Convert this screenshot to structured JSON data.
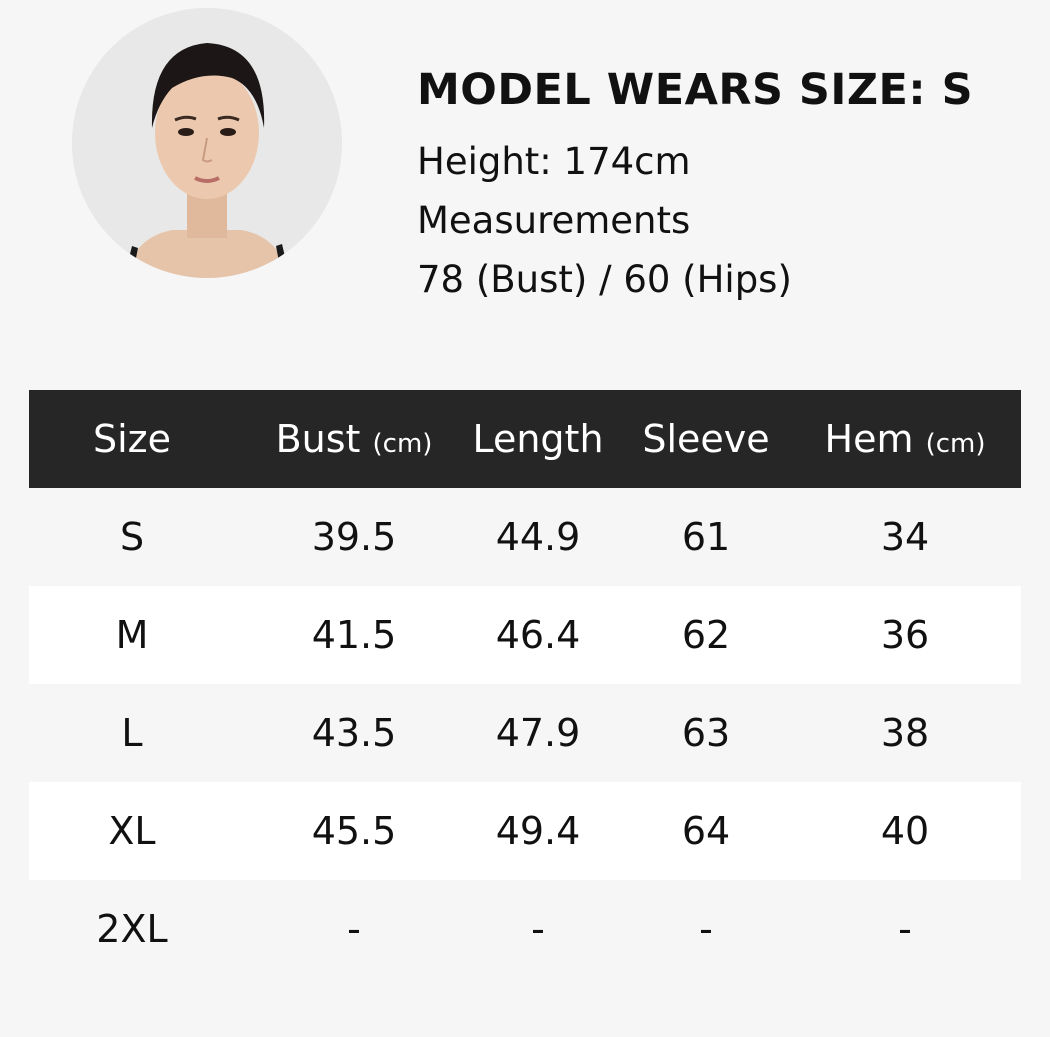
{
  "model": {
    "title": "MODEL WEARS SIZE: S",
    "height": "Height: 174cm",
    "measurements_label": "Measurements",
    "measurements": "78 (Bust) / 60 (Hips)"
  },
  "colors": {
    "header_bg": "#262626",
    "page_bg": "#f6f6f6",
    "alt_row_bg": "#ffffff"
  },
  "table": {
    "headers": [
      {
        "label": "Size",
        "unit": ""
      },
      {
        "label": "Bust",
        "unit": "(cm)"
      },
      {
        "label": "Length",
        "unit": ""
      },
      {
        "label": "Sleeve",
        "unit": ""
      },
      {
        "label": "Hem",
        "unit": "(cm)"
      }
    ],
    "rows": [
      [
        "S",
        "39.5",
        "44.9",
        "61",
        "34"
      ],
      [
        "M",
        "41.5",
        "46.4",
        "62",
        "36"
      ],
      [
        "L",
        "43.5",
        "47.9",
        "63",
        "38"
      ],
      [
        "XL",
        "45.5",
        "49.4",
        "64",
        "40"
      ],
      [
        "2XL",
        "-",
        "-",
        "-",
        "-"
      ]
    ]
  }
}
